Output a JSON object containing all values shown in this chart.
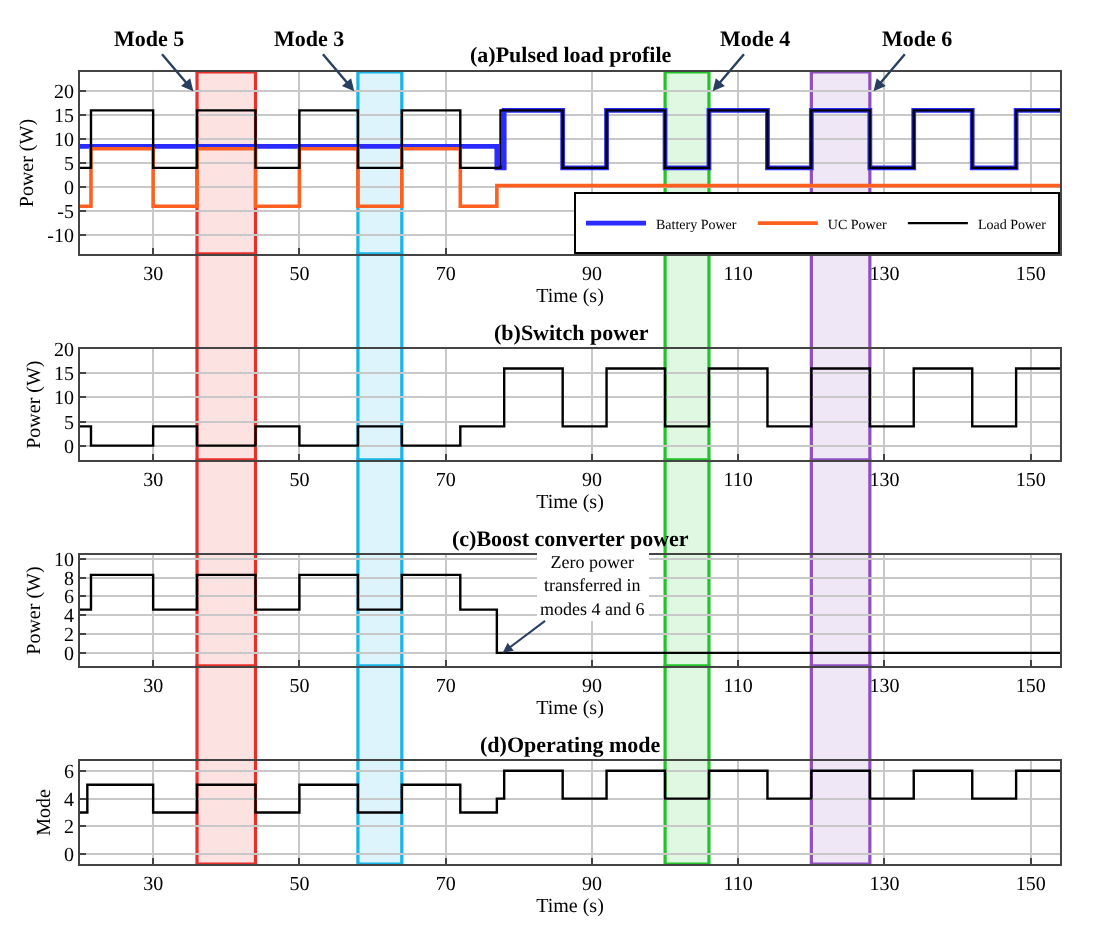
{
  "chart_data": [
    {
      "type": "step",
      "title": "(a)Pulsed load profile",
      "xlabel": "Time (s)",
      "ylabel": "Power (W)",
      "xlim": [
        20,
        154
      ],
      "xticks": [
        30,
        50,
        70,
        90,
        110,
        130,
        150
      ],
      "ylim": [
        -14,
        24
      ],
      "yticks": [
        -10,
        -5,
        0,
        5,
        10,
        15,
        20
      ],
      "grid": true,
      "legend": "bottom right",
      "series": [
        {
          "name": "Battery Power",
          "color": "#2b2bff",
          "x": [
            20,
            77,
            78,
            86,
            92,
            100,
            106,
            114,
            120,
            128,
            134,
            142,
            148,
            154
          ],
          "values": [
            8.5,
            4,
            16,
            4,
            16,
            4,
            16,
            4,
            16,
            4,
            16,
            4,
            16,
            16
          ]
        },
        {
          "name": "UC Power",
          "color": "#ff6020",
          "x": [
            20,
            21.5,
            30,
            36,
            44,
            50,
            58,
            64,
            72,
            77,
            154
          ],
          "values": [
            -4,
            8,
            -4,
            8,
            -4,
            8,
            -4,
            8,
            -4,
            0.3,
            0.3
          ]
        },
        {
          "name": "Load Power",
          "color": "#000000",
          "x": [
            20,
            21.5,
            30,
            36,
            44,
            50,
            58,
            64,
            72,
            77.5,
            86,
            92,
            100,
            106,
            114,
            120,
            128,
            134,
            142,
            148,
            154
          ],
          "values": [
            4,
            16,
            4,
            16,
            4,
            16,
            4,
            16,
            4,
            16,
            4,
            16,
            4,
            16,
            4,
            16,
            4,
            16,
            4,
            16,
            16
          ]
        }
      ],
      "bands": [
        {
          "axis": "x",
          "from": 36,
          "to": 44,
          "color": "#e8302a"
        },
        {
          "axis": "x",
          "from": 58,
          "to": 64,
          "color": "#18b4ea"
        },
        {
          "axis": "x",
          "from": 100,
          "to": 106,
          "color": "#22c42a"
        },
        {
          "axis": "x",
          "from": 120,
          "to": 128,
          "color": "#8e4fc0"
        }
      ],
      "annotations": [
        {
          "text": "Mode 5",
          "x": 35.5,
          "y": 20
        },
        {
          "text": "Mode 3",
          "x": 57.5,
          "y": 20
        },
        {
          "text": "Mode 4",
          "x": 106.5,
          "y": 20
        },
        {
          "text": "Mode 6",
          "x": 128.5,
          "y": 20
        }
      ]
    },
    {
      "type": "step",
      "title": "(b)Switch power",
      "xlabel": "Time (s)",
      "ylabel": "Power (W)",
      "xlim": [
        20,
        154
      ],
      "xticks": [
        30,
        50,
        70,
        90,
        110,
        130,
        150
      ],
      "ylim": [
        -3,
        20
      ],
      "yticks": [
        0,
        5,
        10,
        15,
        20
      ],
      "grid": true,
      "series": [
        {
          "color": "#000000",
          "x": [
            20,
            21.5,
            30,
            36,
            44,
            50,
            58,
            64,
            72,
            78,
            86,
            92,
            100,
            106,
            114,
            120,
            128,
            134,
            142,
            148,
            154
          ],
          "values": [
            4,
            0,
            4,
            0,
            4,
            0,
            4,
            0,
            4,
            16,
            4,
            16,
            4,
            16,
            4,
            16,
            4,
            16,
            4,
            16,
            16
          ]
        }
      ],
      "bands": [
        {
          "axis": "x",
          "from": 36,
          "to": 44,
          "color": "#e8302a"
        },
        {
          "axis": "x",
          "from": 58,
          "to": 64,
          "color": "#18b4ea"
        },
        {
          "axis": "x",
          "from": 100,
          "to": 106,
          "color": "#22c42a"
        },
        {
          "axis": "x",
          "from": 120,
          "to": 128,
          "color": "#8e4fc0"
        }
      ]
    },
    {
      "type": "step",
      "title": "(c)Boost converter power",
      "xlabel": "Time (s)",
      "ylabel": "Power (W)",
      "xlim": [
        20,
        154
      ],
      "xticks": [
        30,
        50,
        70,
        90,
        110,
        130,
        150
      ],
      "ylim": [
        -1.4,
        10.4
      ],
      "yticks": [
        0,
        2,
        4,
        6,
        8,
        10
      ],
      "grid": true,
      "series": [
        {
          "color": "#000000",
          "x": [
            20,
            21.5,
            30,
            36,
            44,
            50,
            58,
            64,
            72,
            77,
            154
          ],
          "values": [
            4.6,
            8.3,
            4.6,
            8.3,
            4.6,
            8.3,
            4.6,
            8.3,
            4.6,
            0,
            0
          ]
        }
      ],
      "bands": [
        {
          "axis": "x",
          "from": 36,
          "to": 44,
          "color": "#e8302a"
        },
        {
          "axis": "x",
          "from": 58,
          "to": 64,
          "color": "#18b4ea"
        },
        {
          "axis": "x",
          "from": 100,
          "to": 106,
          "color": "#22c42a"
        },
        {
          "axis": "x",
          "from": 120,
          "to": 128,
          "color": "#8e4fc0"
        }
      ],
      "annotations": [
        {
          "text": "Zero power\ntransferred in\nmodes 4 and 6",
          "x": 77.8,
          "y": 0
        }
      ]
    },
    {
      "type": "step",
      "title": "(d)Operating mode",
      "xlabel": "Time (s)",
      "ylabel": "Mode",
      "xlim": [
        20,
        154
      ],
      "xticks": [
        30,
        50,
        70,
        90,
        110,
        130,
        150
      ],
      "ylim": [
        -0.7,
        6.7
      ],
      "yticks": [
        0,
        2,
        4,
        6
      ],
      "grid": true,
      "series": [
        {
          "color": "#000000",
          "x": [
            20,
            21,
            30,
            36,
            44,
            50,
            58,
            64,
            72,
            77,
            78,
            86,
            92,
            100,
            106,
            114,
            120,
            128,
            134,
            142,
            148,
            154
          ],
          "values": [
            3,
            5,
            3,
            5,
            3,
            5,
            3,
            5,
            3,
            4,
            6,
            4,
            6,
            4,
            6,
            4,
            6,
            4,
            6,
            4,
            6,
            6
          ]
        }
      ],
      "bands": [
        {
          "axis": "x",
          "from": 36,
          "to": 44,
          "color": "#e8302a"
        },
        {
          "axis": "x",
          "from": 58,
          "to": 64,
          "color": "#18b4ea"
        },
        {
          "axis": "x",
          "from": 100,
          "to": 106,
          "color": "#22c42a"
        },
        {
          "axis": "x",
          "from": 120,
          "to": 128,
          "color": "#8e4fc0"
        }
      ]
    }
  ]
}
